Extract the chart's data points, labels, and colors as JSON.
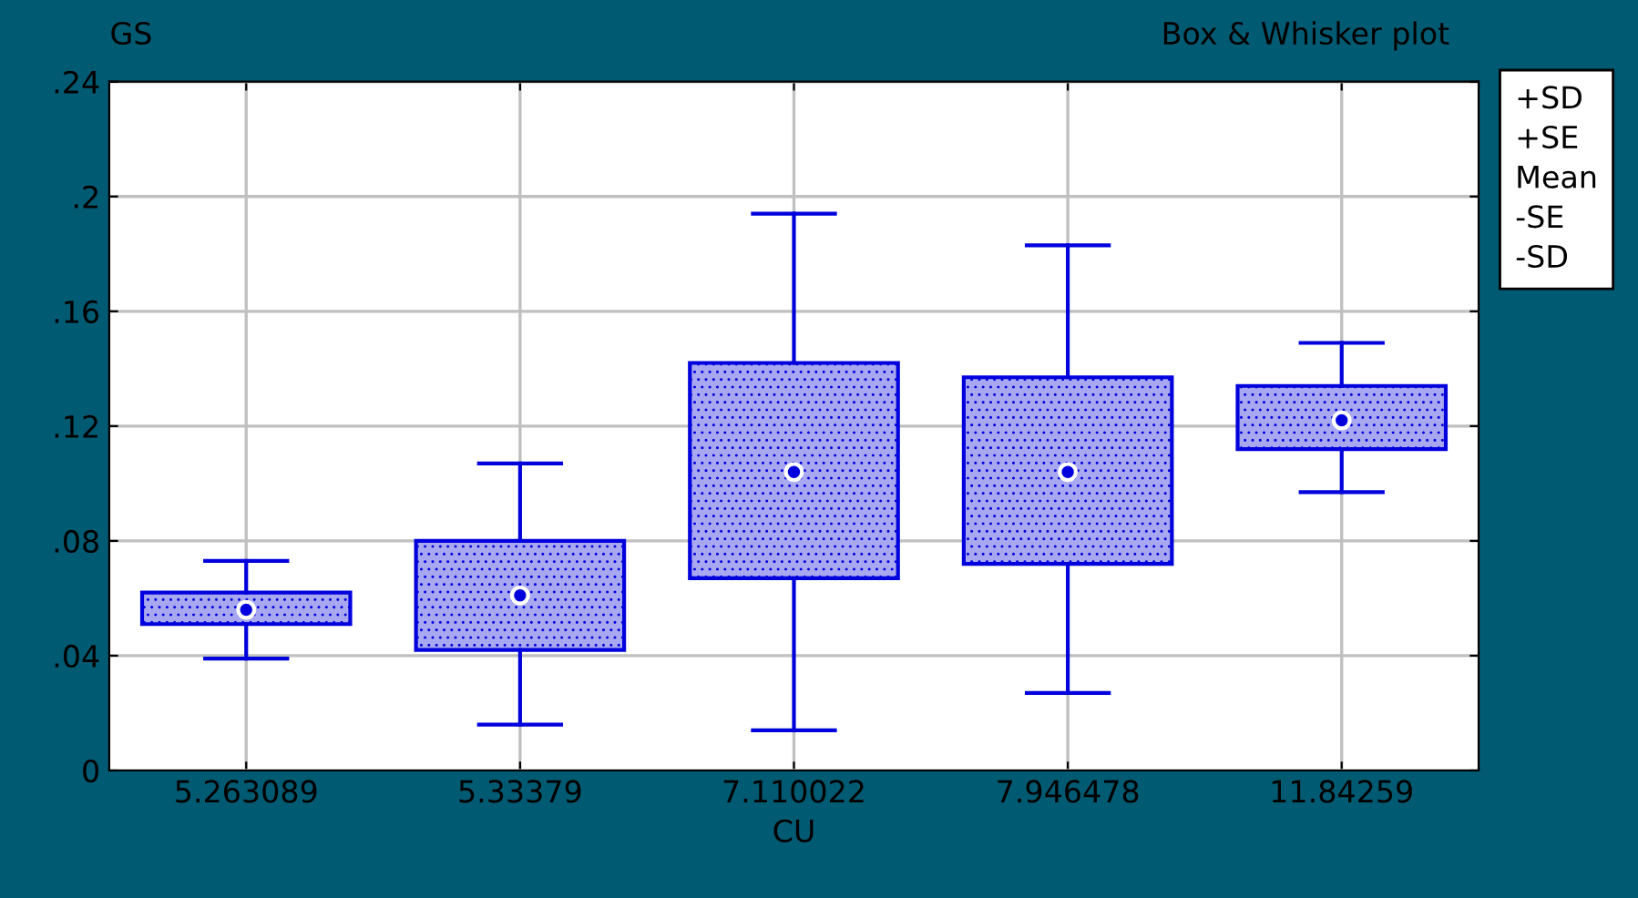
{
  "chart_data": {
    "type": "box",
    "title": "Box & Whisker plot",
    "xlabel": "CU",
    "ylabel": "GS",
    "categories": [
      "5.263089",
      "5.33379",
      "7.110022",
      "7.946478",
      "11.84259"
    ],
    "boxes": [
      {
        "low": 0.039,
        "q1": 0.051,
        "median": 0.056,
        "q3": 0.062,
        "high": 0.073
      },
      {
        "low": 0.016,
        "q1": 0.042,
        "median": 0.061,
        "q3": 0.08,
        "high": 0.107
      },
      {
        "low": 0.014,
        "q1": 0.067,
        "median": 0.104,
        "q3": 0.142,
        "high": 0.194
      },
      {
        "low": 0.027,
        "q1": 0.072,
        "median": 0.104,
        "q3": 0.137,
        "high": 0.183
      },
      {
        "low": 0.097,
        "q1": 0.112,
        "median": 0.122,
        "q3": 0.134,
        "high": 0.149
      }
    ],
    "color": "#0000dd",
    "ylim": [
      0,
      0.24
    ],
    "yticks": [
      0,
      {
        "value": 0.04,
        "label": ".04"
      },
      {
        "value": 0.08,
        "label": ".08"
      },
      {
        "value": 0.12,
        "label": ".12"
      },
      {
        "value": 0.16,
        "label": ".16"
      },
      {
        "value": 0.2,
        "label": ".2"
      },
      {
        "value": 0.24,
        "label": ".24"
      }
    ],
    "grid": true,
    "annotations": [
      "+SD",
      "+SE",
      "Mean",
      "-SE",
      "-SD"
    ]
  }
}
